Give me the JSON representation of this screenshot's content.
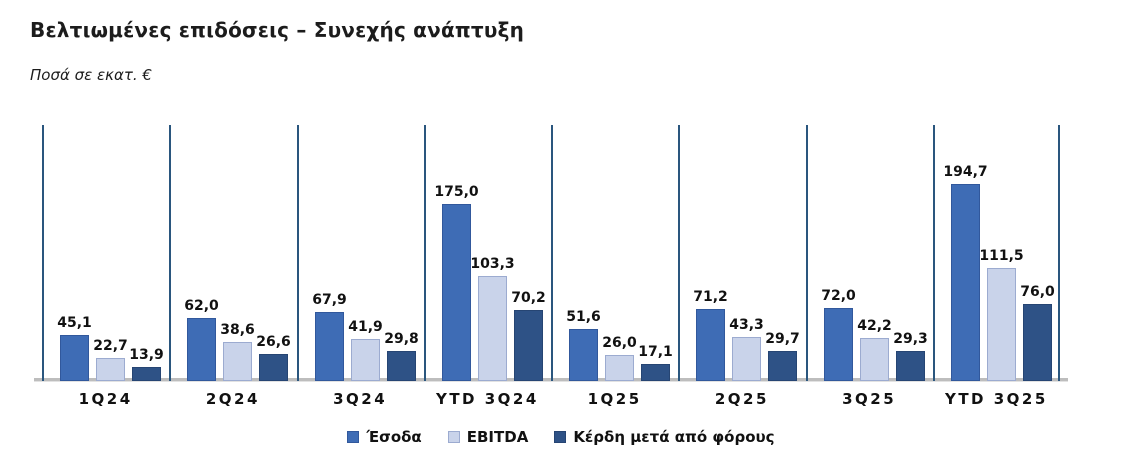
{
  "header": {
    "title": "Βελτιωμένες επιδόσεις – Συνεχής ανάπτυξη",
    "subtitle": "Ποσά σε εκατ. €"
  },
  "chart_data": {
    "type": "bar",
    "title": "Βελτιωμένες επιδόσεις – Συνεχής ανάπτυξη",
    "units_note": "Ποσά σε εκατ. €",
    "categories": [
      "1Q24",
      "2Q24",
      "3Q24",
      "YTD 3Q24",
      "1Q25",
      "2Q25",
      "3Q25",
      "YTD 3Q25"
    ],
    "series": [
      {
        "name": "Έσοδα",
        "color": "#3e6cb5",
        "border": "#31589c",
        "values": [
          45.1,
          62.0,
          67.9,
          175.0,
          51.6,
          71.2,
          72.0,
          194.7
        ]
      },
      {
        "name": "EBITDA",
        "color": "#c9d3ea",
        "border": "#9cabd0",
        "values": [
          22.7,
          38.6,
          41.9,
          103.3,
          26.0,
          43.3,
          42.2,
          111.5
        ]
      },
      {
        "name": "Κέρδη μετά από φόρους",
        "color": "#2e5286",
        "border": "#264573",
        "values": [
          13.9,
          26.6,
          29.8,
          70.2,
          17.1,
          29.7,
          29.3,
          76.0
        ]
      }
    ],
    "value_labels": [
      [
        "45,1",
        "22,7",
        "13,9"
      ],
      [
        "62,0",
        "38,6",
        "26,6"
      ],
      [
        "67,9",
        "41,9",
        "29,8"
      ],
      [
        "175,0",
        "103,3",
        "70,2"
      ],
      [
        "51,6",
        "26,0",
        "17,1"
      ],
      [
        "71,2",
        "43,3",
        "29,7"
      ],
      [
        "72,0",
        "42,2",
        "29,3"
      ],
      [
        "194,7",
        "111,5",
        "76,0"
      ]
    ],
    "ylim": [
      0,
      253
    ],
    "grid": false,
    "y_axis_visible": false,
    "legend_position": "bottom",
    "separator_color": "#2a567e",
    "axis_color": "#bdbdbd"
  }
}
